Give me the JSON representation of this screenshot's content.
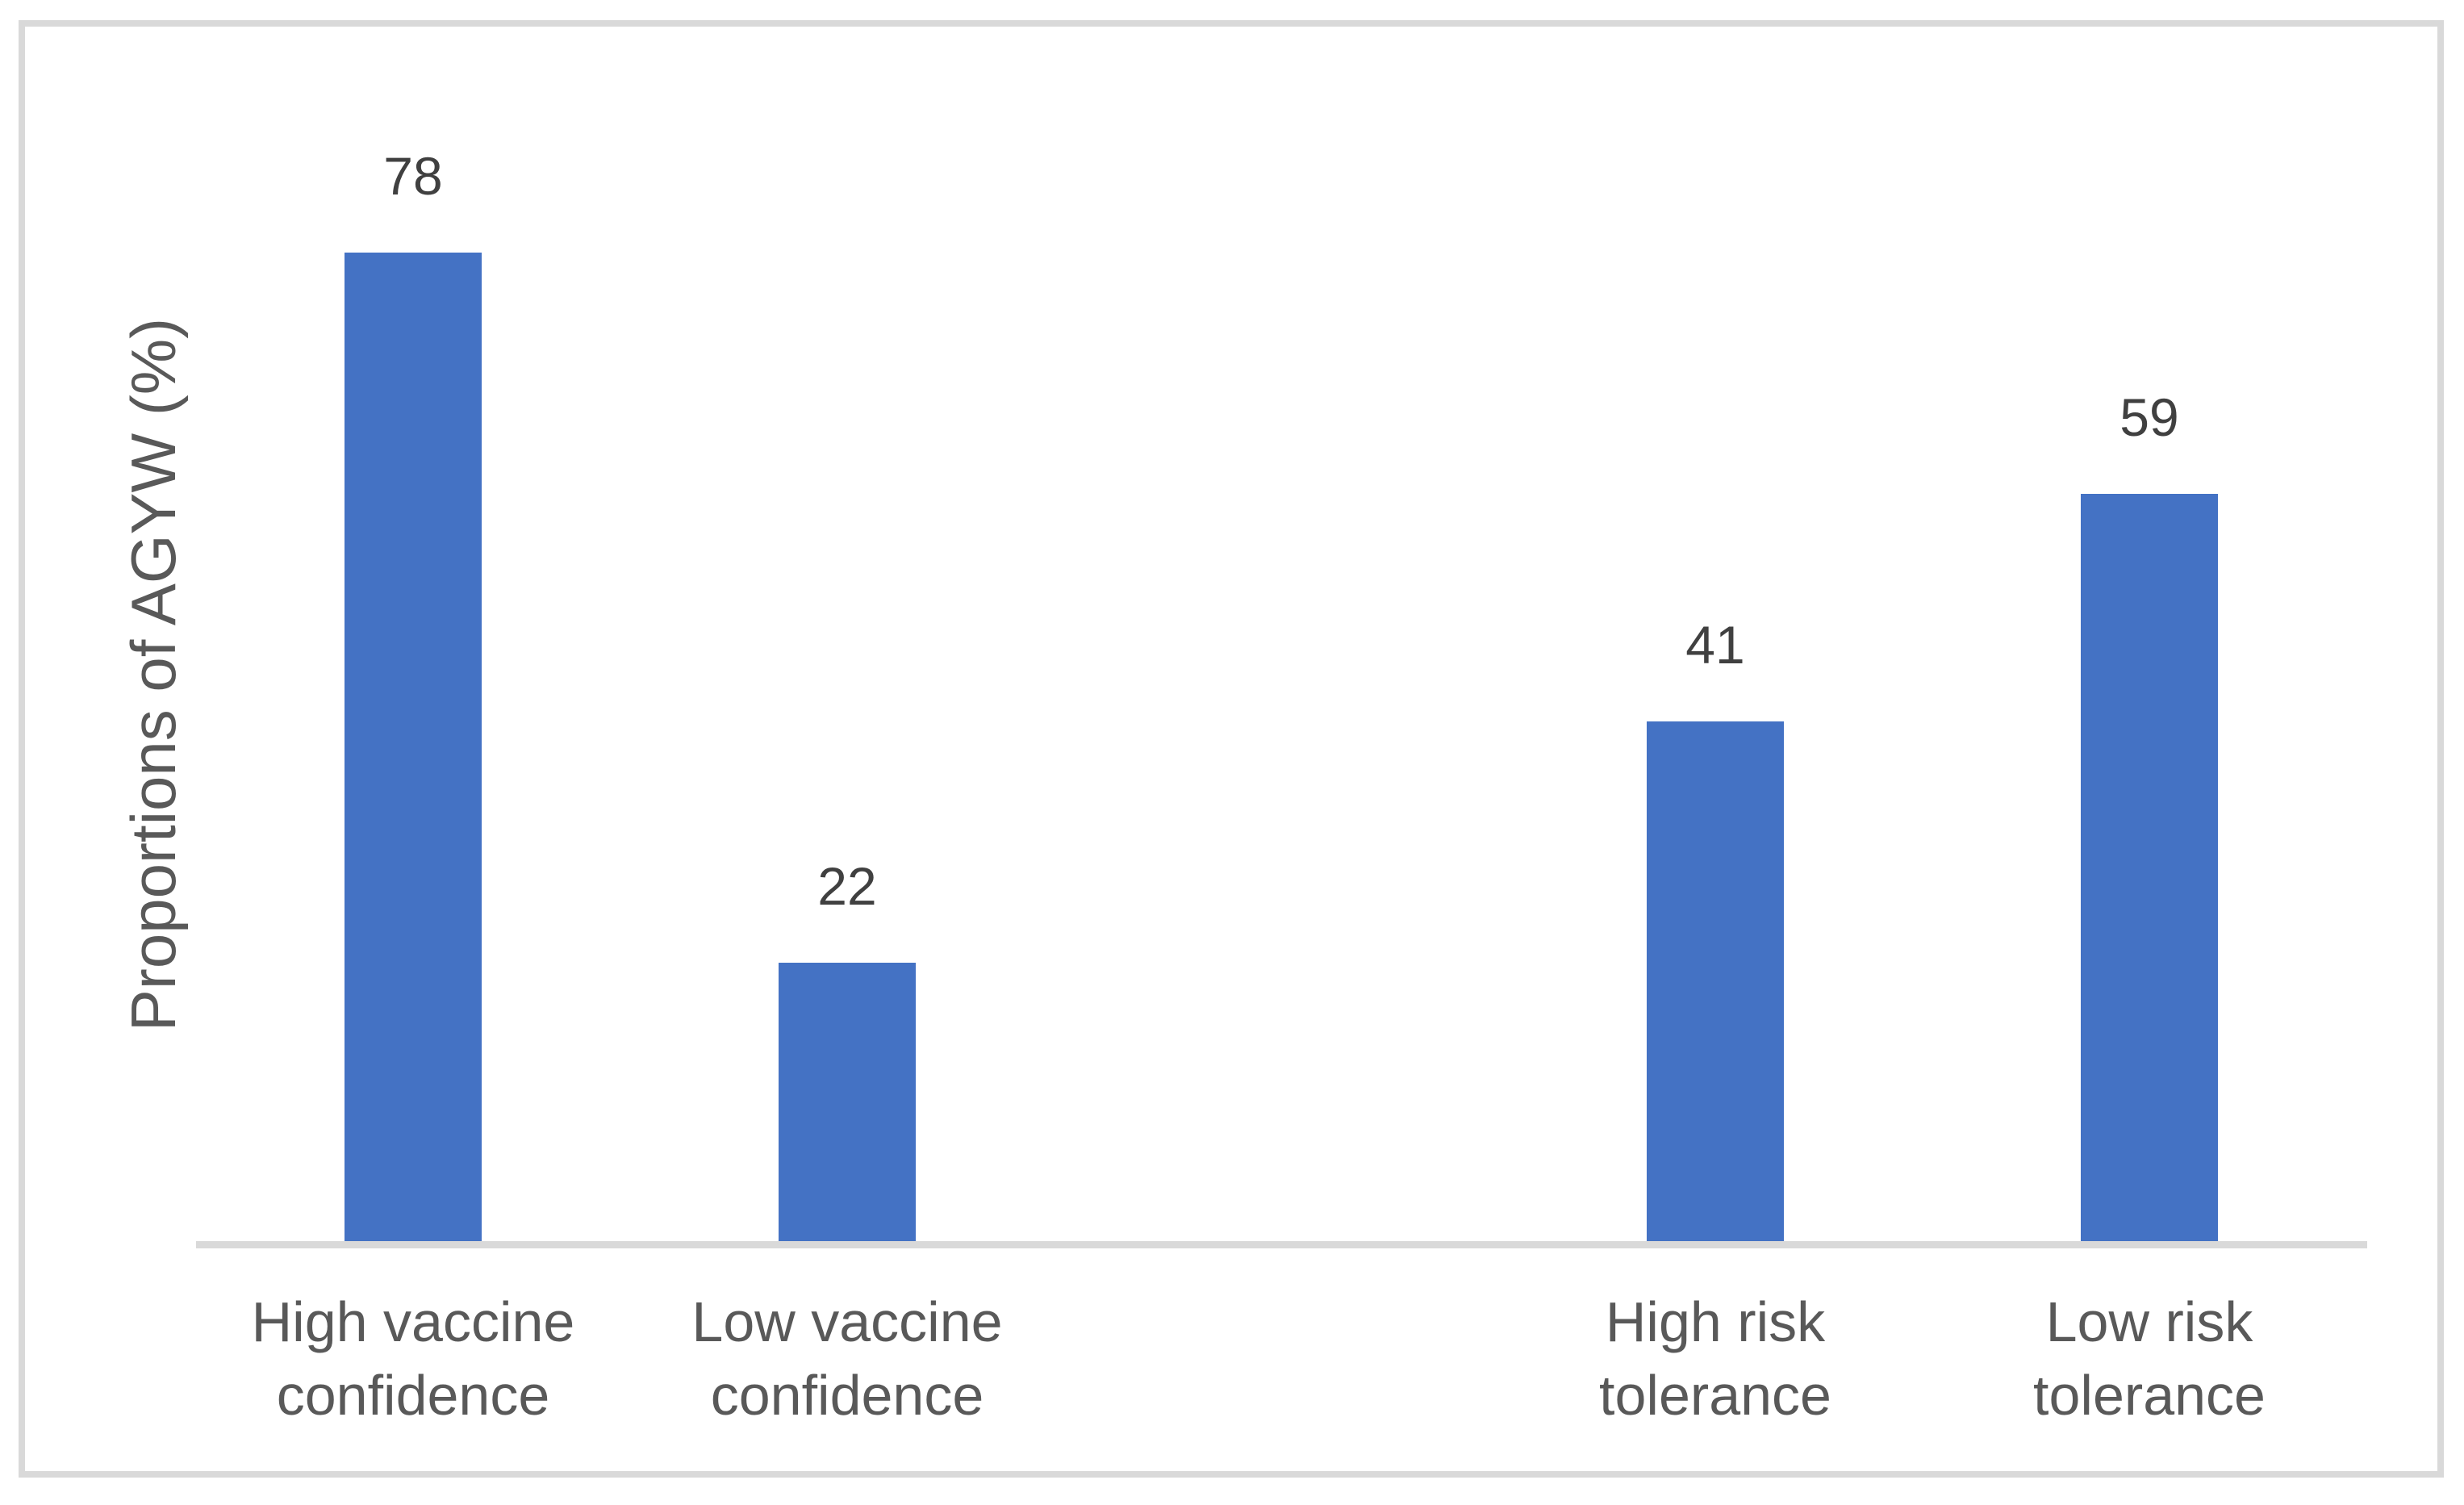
{
  "chart_data": {
    "type": "bar",
    "title": "",
    "xlabel": "",
    "ylabel": "Proportions of AGYW (%)",
    "categories": [
      "High vaccine confidence",
      "Low vaccine confidence",
      "High risk tolerance",
      "Low risk tolerance"
    ],
    "values": [
      78,
      22,
      41,
      59
    ],
    "ylim": [
      0,
      90
    ],
    "grid": false,
    "legend": "none",
    "data_labels_shown": true,
    "bar_color": "#4472C4",
    "axis_line_color": "#D9D9D9",
    "category_label_color": "#595959",
    "value_label_color": "#404040",
    "slot_indices": [
      0,
      1,
      3,
      4
    ],
    "total_slots": 5
  }
}
